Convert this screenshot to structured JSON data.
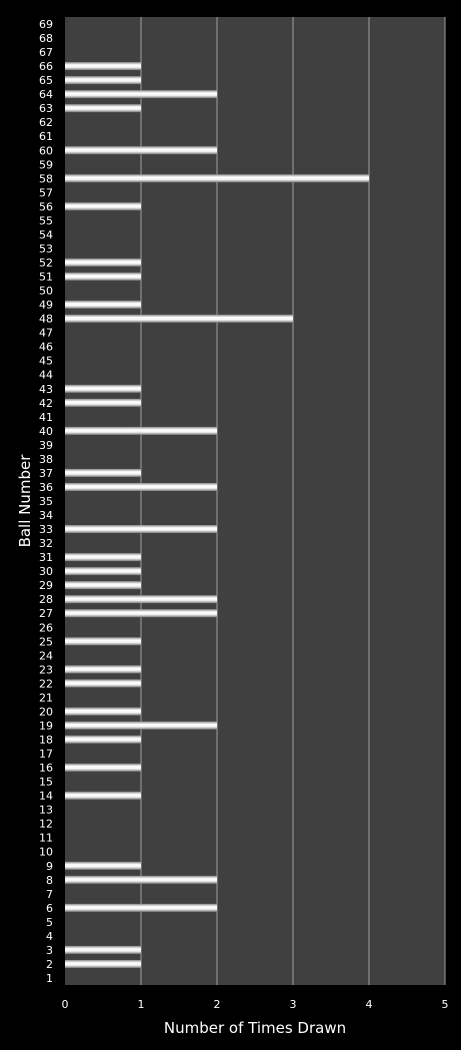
{
  "chart_data": {
    "type": "bar",
    "orientation": "horizontal",
    "title": "",
    "xlabel": "Number of Times Drawn",
    "ylabel": "Ball Number",
    "xlim": [
      0,
      5
    ],
    "xticks": [
      "0",
      "1",
      "2",
      "3",
      "4",
      "5"
    ],
    "grid": true,
    "legend": "none",
    "categories": [
      "1",
      "2",
      "3",
      "4",
      "5",
      "6",
      "7",
      "8",
      "9",
      "10",
      "11",
      "12",
      "13",
      "14",
      "15",
      "16",
      "17",
      "18",
      "19",
      "20",
      "21",
      "22",
      "23",
      "24",
      "25",
      "26",
      "27",
      "28",
      "29",
      "30",
      "31",
      "32",
      "33",
      "34",
      "35",
      "36",
      "37",
      "38",
      "39",
      "40",
      "41",
      "42",
      "43",
      "44",
      "45",
      "46",
      "47",
      "48",
      "49",
      "50",
      "51",
      "52",
      "53",
      "54",
      "55",
      "56",
      "57",
      "58",
      "59",
      "60",
      "61",
      "62",
      "63",
      "64",
      "65",
      "66",
      "67",
      "68",
      "69"
    ],
    "values": [
      0,
      1,
      1,
      0,
      0,
      2,
      0,
      2,
      1,
      0,
      0,
      0,
      0,
      1,
      0,
      1,
      0,
      1,
      2,
      1,
      0,
      1,
      1,
      0,
      1,
      0,
      2,
      2,
      1,
      1,
      1,
      0,
      2,
      0,
      0,
      2,
      1,
      0,
      0,
      2,
      0,
      1,
      1,
      0,
      0,
      0,
      0,
      3,
      1,
      0,
      1,
      1,
      0,
      0,
      0,
      1,
      0,
      4,
      0,
      2,
      0,
      0,
      1,
      2,
      1,
      1,
      0,
      0,
      0
    ],
    "colors": {
      "background": "#000000",
      "plot_area": "#404040",
      "gridline": "#a0a0a0",
      "bar": "#ffffff",
      "text": "#ffffff"
    }
  }
}
